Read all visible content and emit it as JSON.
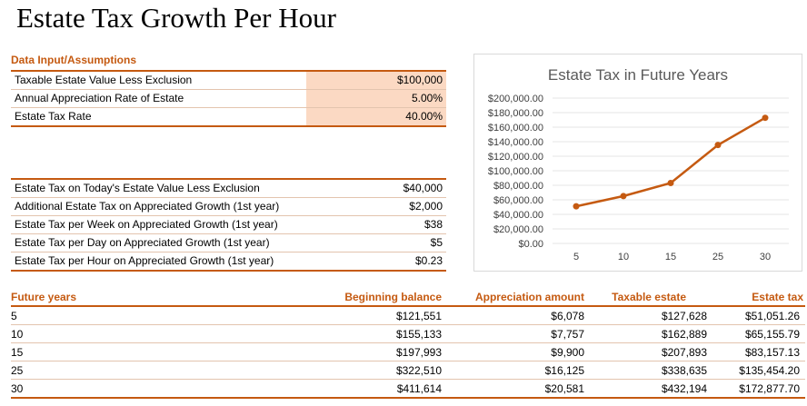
{
  "title": "Estate Tax Growth Per Hour",
  "inputs": {
    "header": "Data Input/Assumptions",
    "rows": [
      {
        "label": "Taxable Estate Value Less Exclusion",
        "value": "$100,000"
      },
      {
        "label": "Annual Appreciation Rate of Estate",
        "value": "5.00%"
      },
      {
        "label": "Estate Tax Rate",
        "value": "40.00%"
      }
    ]
  },
  "outputs": {
    "rows": [
      {
        "label": "Estate Tax on Today's Estate Value Less  Exclusion",
        "value": "$40,000"
      },
      {
        "label": "Additional Estate Tax on Appreciated Growth (1st year)",
        "value": "$2,000"
      },
      {
        "label": "Estate Tax per Week on Appreciated Growth (1st year)",
        "value": "$38"
      },
      {
        "label": "Estate Tax per Day on Appreciated Growth (1st year)",
        "value": "$5"
      },
      {
        "label": "Estate Tax per Hour on Appreciated Growth (1st year)",
        "value": "$0.23"
      }
    ]
  },
  "future": {
    "headers": [
      "Future years",
      "Beginning balance",
      "Appreciation amount",
      "Taxable estate",
      "Estate tax"
    ],
    "rows": [
      [
        "5",
        "$121,551",
        "$6,078",
        "$127,628",
        "$51,051.26"
      ],
      [
        "10",
        "$155,133",
        "$7,757",
        "$162,889",
        "$65,155.79"
      ],
      [
        "15",
        "$197,993",
        "$9,900",
        "$207,893",
        "$83,157.13"
      ],
      [
        "25",
        "$322,510",
        "$16,125",
        "$338,635",
        "$135,454.20"
      ],
      [
        "30",
        "$411,614",
        "$20,581",
        "$432,194",
        "$172,877.70"
      ]
    ]
  },
  "chart_data": {
    "type": "line",
    "title": "Estate Tax in Future Years",
    "categories": [
      "5",
      "10",
      "15",
      "25",
      "30"
    ],
    "values": [
      51051.26,
      65155.79,
      83157.13,
      135454.2,
      172877.7
    ],
    "ylim": [
      0,
      200000
    ],
    "yticks": [
      "$0.00",
      "$20,000.00",
      "$40,000.00",
      "$60,000.00",
      "$80,000.00",
      "$100,000.00",
      "$120,000.00",
      "$140,000.00",
      "$160,000.00",
      "$180,000.00",
      "$200,000.00"
    ],
    "grid": true,
    "line_color": "#c55a11"
  }
}
